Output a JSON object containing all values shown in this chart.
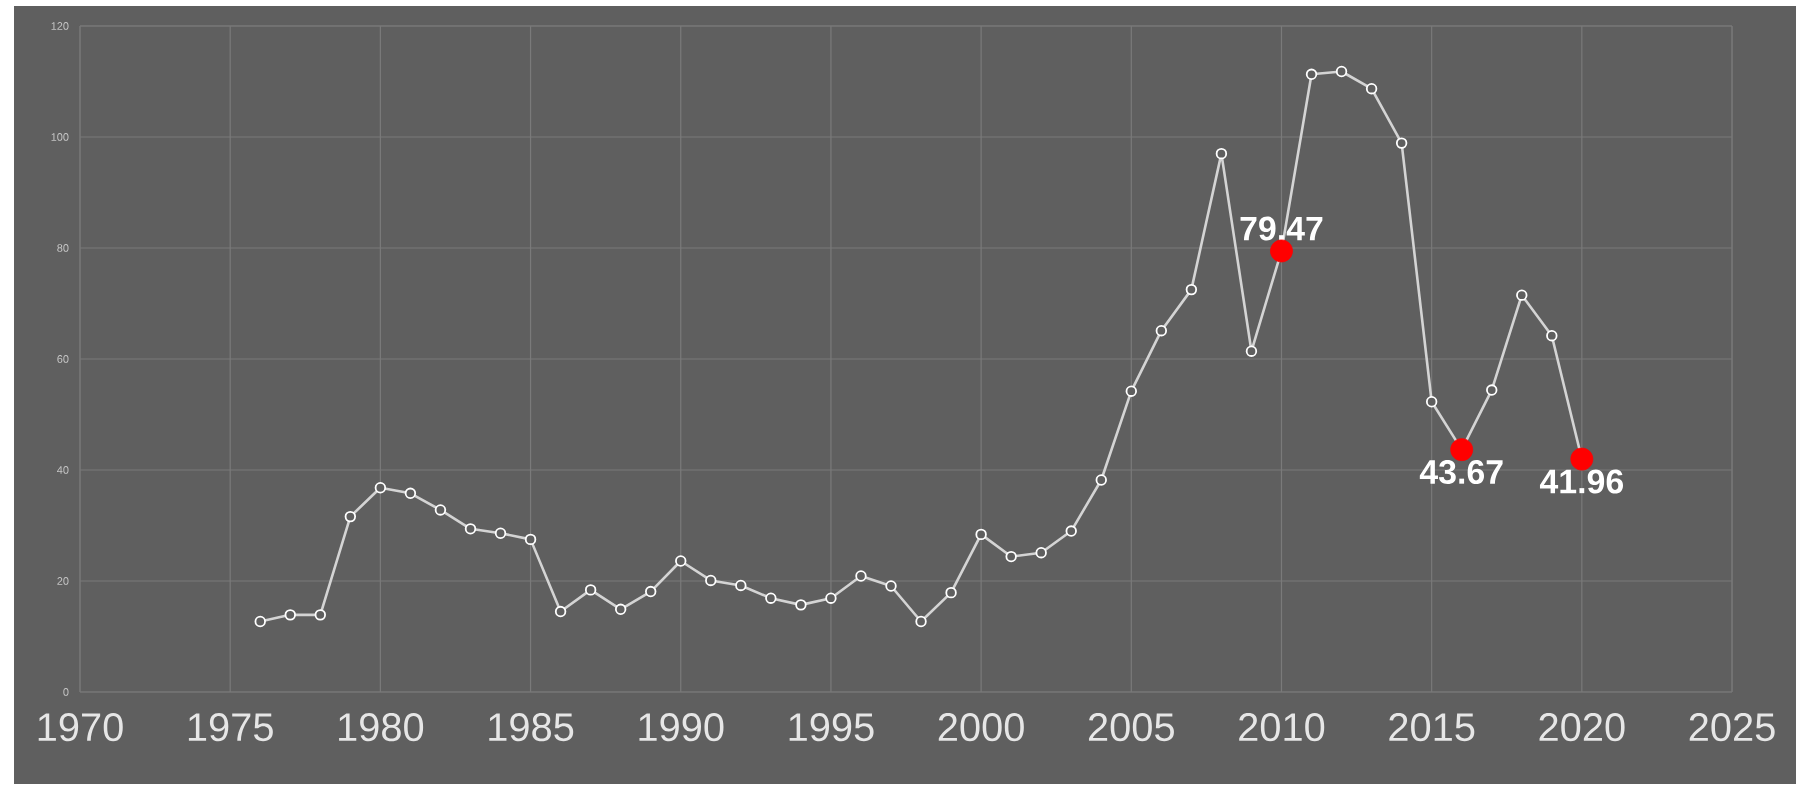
{
  "chart_data": {
    "type": "line",
    "x": [
      1976,
      1977,
      1978,
      1979,
      1980,
      1981,
      1982,
      1983,
      1984,
      1985,
      1986,
      1987,
      1988,
      1989,
      1990,
      1991,
      1992,
      1993,
      1994,
      1995,
      1996,
      1997,
      1998,
      1999,
      2000,
      2001,
      2002,
      2003,
      2004,
      2005,
      2006,
      2007,
      2008,
      2009,
      2010,
      2011,
      2012,
      2013,
      2014,
      2015,
      2016,
      2017,
      2018,
      2019,
      2020
    ],
    "series": [
      {
        "color": "#d4d4d4",
        "values": [
          12.7,
          13.9,
          13.9,
          31.6,
          36.8,
          35.8,
          32.8,
          29.4,
          28.6,
          27.5,
          14.5,
          18.4,
          14.9,
          18.1,
          23.6,
          20.1,
          19.2,
          16.9,
          15.7,
          16.9,
          20.9,
          19.1,
          12.7,
          17.9,
          28.4,
          24.4,
          25.1,
          29.0,
          38.2,
          54.2,
          65.1,
          72.5,
          97.0,
          61.4,
          79.47,
          111.3,
          111.8,
          108.7,
          98.9,
          52.3,
          43.67,
          54.4,
          71.5,
          64.2,
          41.96
        ]
      },
      {
        "type": "scatter",
        "color": "#ff0000",
        "x": [
          2010,
          2016,
          2020
        ],
        "values": [
          79.47,
          43.67,
          41.96
        ],
        "value_labels": [
          "79.47",
          "43.67",
          "41.96"
        ]
      }
    ],
    "xlim": [
      1970,
      2025
    ],
    "xticks": [
      1970,
      1975,
      1980,
      1985,
      1990,
      1995,
      2000,
      2005,
      2010,
      2015,
      2020,
      2025
    ],
    "ylim": [
      0,
      120
    ],
    "yticks": [
      0,
      20,
      40,
      60,
      80,
      100,
      120
    ],
    "grid": true,
    "marker": "circle"
  }
}
